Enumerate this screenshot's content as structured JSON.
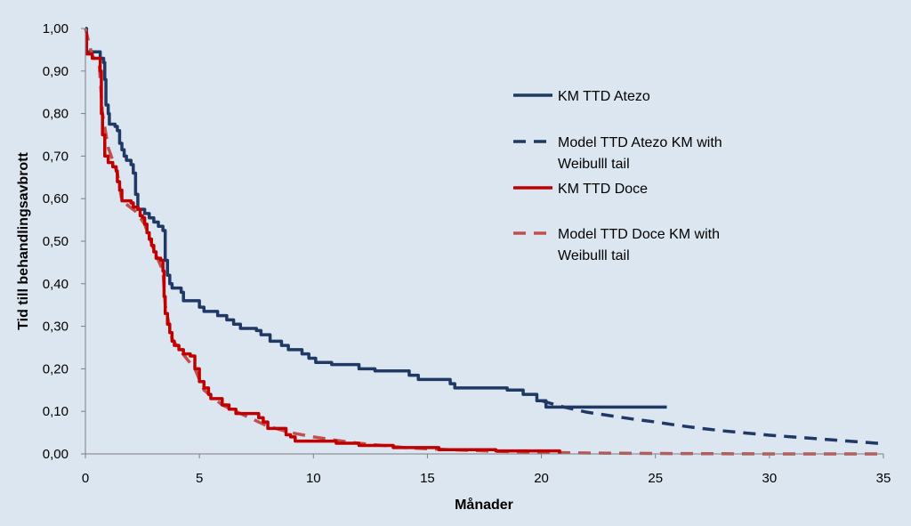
{
  "chart_data": {
    "type": "line",
    "title": "",
    "xlabel": "Månader",
    "ylabel": "Tid till behandlingsavbrott",
    "xlim": [
      0,
      35
    ],
    "ylim": [
      0,
      1
    ],
    "x_ticks": [
      0,
      5,
      10,
      15,
      20,
      25,
      30,
      35
    ],
    "x_tick_labels": [
      "0",
      "5",
      "10",
      "15",
      "20",
      "25",
      "30",
      "35"
    ],
    "y_ticks": [
      0,
      0.1,
      0.2,
      0.3,
      0.4,
      0.5,
      0.6,
      0.7,
      0.8,
      0.9,
      1.0
    ],
    "y_tick_labels": [
      "0,00",
      "0,10",
      "0,20",
      "0,30",
      "0,40",
      "0,50",
      "0,60",
      "0,70",
      "0,80",
      "0,90",
      "1,00"
    ],
    "grid": false,
    "legend_position": "right",
    "series": [
      {
        "name": "KM TTD Atezo",
        "color": "#1f3864",
        "style": "solid",
        "step": true,
        "points": [
          [
            0,
            1.0
          ],
          [
            0.05,
            0.945
          ],
          [
            0.6,
            0.945
          ],
          [
            0.65,
            0.93
          ],
          [
            0.8,
            0.92
          ],
          [
            0.85,
            0.88
          ],
          [
            0.9,
            0.82
          ],
          [
            1.0,
            0.8
          ],
          [
            1.05,
            0.775
          ],
          [
            1.3,
            0.77
          ],
          [
            1.4,
            0.76
          ],
          [
            1.5,
            0.73
          ],
          [
            1.6,
            0.715
          ],
          [
            1.7,
            0.7
          ],
          [
            1.8,
            0.69
          ],
          [
            2.0,
            0.68
          ],
          [
            2.1,
            0.66
          ],
          [
            2.2,
            0.61
          ],
          [
            2.3,
            0.575
          ],
          [
            2.6,
            0.565
          ],
          [
            2.8,
            0.555
          ],
          [
            3.0,
            0.545
          ],
          [
            3.2,
            0.535
          ],
          [
            3.4,
            0.525
          ],
          [
            3.5,
            0.455
          ],
          [
            3.6,
            0.42
          ],
          [
            3.7,
            0.4
          ],
          [
            3.8,
            0.39
          ],
          [
            4.2,
            0.38
          ],
          [
            4.3,
            0.36
          ],
          [
            5.0,
            0.345
          ],
          [
            5.2,
            0.335
          ],
          [
            5.8,
            0.325
          ],
          [
            6.2,
            0.315
          ],
          [
            6.5,
            0.305
          ],
          [
            6.8,
            0.295
          ],
          [
            7.5,
            0.29
          ],
          [
            7.7,
            0.28
          ],
          [
            8.1,
            0.265
          ],
          [
            8.6,
            0.255
          ],
          [
            8.9,
            0.245
          ],
          [
            9.5,
            0.235
          ],
          [
            9.8,
            0.225
          ],
          [
            10.1,
            0.215
          ],
          [
            10.8,
            0.21
          ],
          [
            12.0,
            0.2
          ],
          [
            12.7,
            0.195
          ],
          [
            14.2,
            0.185
          ],
          [
            14.6,
            0.175
          ],
          [
            16.0,
            0.165
          ],
          [
            16.2,
            0.155
          ],
          [
            18.5,
            0.15
          ],
          [
            19.2,
            0.14
          ],
          [
            19.8,
            0.125
          ],
          [
            20.2,
            0.11
          ],
          [
            25.5,
            0.11
          ]
        ]
      },
      {
        "name": "Model TTD Atezo KM with Weibulll tail",
        "color": "#1f3864",
        "style": "dashed",
        "points": [
          [
            20.0,
            0.125
          ],
          [
            21.0,
            0.11
          ],
          [
            22.0,
            0.098
          ],
          [
            23.0,
            0.09
          ],
          [
            24.0,
            0.082
          ],
          [
            25.0,
            0.075
          ],
          [
            26.0,
            0.067
          ],
          [
            27.0,
            0.06
          ],
          [
            28.0,
            0.054
          ],
          [
            29.0,
            0.049
          ],
          [
            30.0,
            0.044
          ],
          [
            31.0,
            0.04
          ],
          [
            32.0,
            0.036
          ],
          [
            33.0,
            0.032
          ],
          [
            34.0,
            0.028
          ],
          [
            35.0,
            0.024
          ]
        ]
      },
      {
        "name": "KM TTD Doce",
        "color": "#c00000",
        "style": "solid",
        "step": true,
        "points": [
          [
            0,
            0.99
          ],
          [
            0.05,
            0.94
          ],
          [
            0.3,
            0.93
          ],
          [
            0.55,
            0.93
          ],
          [
            0.65,
            0.9
          ],
          [
            0.7,
            0.8
          ],
          [
            0.75,
            0.75
          ],
          [
            0.85,
            0.7
          ],
          [
            1.0,
            0.685
          ],
          [
            1.2,
            0.675
          ],
          [
            1.35,
            0.665
          ],
          [
            1.4,
            0.64
          ],
          [
            1.5,
            0.62
          ],
          [
            1.6,
            0.595
          ],
          [
            2.0,
            0.59
          ],
          [
            2.1,
            0.58
          ],
          [
            2.3,
            0.575
          ],
          [
            2.4,
            0.56
          ],
          [
            2.5,
            0.555
          ],
          [
            2.6,
            0.54
          ],
          [
            2.7,
            0.52
          ],
          [
            2.8,
            0.505
          ],
          [
            2.9,
            0.49
          ],
          [
            3.0,
            0.475
          ],
          [
            3.1,
            0.46
          ],
          [
            3.3,
            0.455
          ],
          [
            3.4,
            0.43
          ],
          [
            3.45,
            0.37
          ],
          [
            3.5,
            0.33
          ],
          [
            3.6,
            0.305
          ],
          [
            3.7,
            0.285
          ],
          [
            3.8,
            0.265
          ],
          [
            3.9,
            0.255
          ],
          [
            4.1,
            0.245
          ],
          [
            4.3,
            0.235
          ],
          [
            4.6,
            0.23
          ],
          [
            4.8,
            0.2
          ],
          [
            5.0,
            0.17
          ],
          [
            5.2,
            0.155
          ],
          [
            5.4,
            0.14
          ],
          [
            5.5,
            0.13
          ],
          [
            6.0,
            0.115
          ],
          [
            6.3,
            0.105
          ],
          [
            6.6,
            0.095
          ],
          [
            7.6,
            0.085
          ],
          [
            7.8,
            0.075
          ],
          [
            8.0,
            0.06
          ],
          [
            8.8,
            0.045
          ],
          [
            9.0,
            0.04
          ],
          [
            9.2,
            0.03
          ],
          [
            11.0,
            0.025
          ],
          [
            12.0,
            0.02
          ],
          [
            13.5,
            0.015
          ],
          [
            15.5,
            0.01
          ],
          [
            18.0,
            0.007
          ],
          [
            20.8,
            0.0
          ]
        ]
      },
      {
        "name": "Model TTD Doce KM with Weibulll tail",
        "color": "#c0504d",
        "style": "dashed",
        "points": [
          [
            0,
            1.0
          ],
          [
            0.3,
            0.935
          ],
          [
            0.6,
            0.92
          ],
          [
            0.75,
            0.8
          ],
          [
            1.0,
            0.72
          ],
          [
            1.4,
            0.66
          ],
          [
            1.6,
            0.595
          ],
          [
            2.2,
            0.57
          ],
          [
            2.6,
            0.54
          ],
          [
            3.0,
            0.48
          ],
          [
            3.4,
            0.43
          ],
          [
            3.5,
            0.35
          ],
          [
            3.8,
            0.27
          ],
          [
            4.2,
            0.24
          ],
          [
            4.8,
            0.2
          ],
          [
            5.2,
            0.15
          ],
          [
            6.0,
            0.115
          ],
          [
            7.0,
            0.09
          ],
          [
            8.0,
            0.065
          ],
          [
            9.0,
            0.05
          ],
          [
            10.0,
            0.04
          ],
          [
            11.0,
            0.032
          ],
          [
            12.0,
            0.025
          ],
          [
            13.0,
            0.02
          ],
          [
            14.0,
            0.015
          ],
          [
            15.0,
            0.012
          ],
          [
            16.0,
            0.01
          ],
          [
            17.0,
            0.008
          ],
          [
            18.0,
            0.006
          ],
          [
            19.0,
            0.005
          ],
          [
            20.0,
            0.004
          ],
          [
            21.0,
            0.003
          ],
          [
            22.0,
            0.002
          ],
          [
            25.0,
            0.001
          ],
          [
            30.0,
            0.0
          ],
          [
            35.0,
            0.0
          ]
        ]
      }
    ],
    "legend": [
      {
        "label_lines": [
          "KM TTD Atezo"
        ],
        "series": 0
      },
      {
        "label_lines": [
          "Model TTD Atezo KM with",
          "Weibulll tail"
        ],
        "series": 1
      },
      {
        "label_lines": [
          "KM TTD Doce"
        ],
        "series": 2
      },
      {
        "label_lines": [
          "Model TTD Doce KM with",
          "Weibulll tail"
        ],
        "series": 3
      }
    ]
  }
}
